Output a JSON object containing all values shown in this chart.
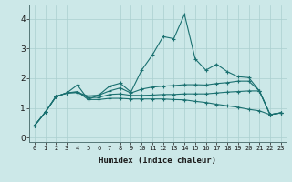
{
  "xlabel": "Humidex (Indice chaleur)",
  "ylabel": "",
  "xlim": [
    -0.5,
    23.5
  ],
  "ylim": [
    -0.15,
    4.45
  ],
  "xticks": [
    0,
    1,
    2,
    3,
    4,
    5,
    6,
    7,
    8,
    9,
    10,
    11,
    12,
    13,
    14,
    15,
    16,
    17,
    18,
    19,
    20,
    21,
    22,
    23
  ],
  "yticks": [
    0,
    1,
    2,
    3,
    4
  ],
  "background_color": "#cce8e8",
  "grid_color": "#aacfcf",
  "line_color": "#1a7070",
  "lines": [
    [
      0.4,
      0.85,
      1.38,
      1.5,
      1.77,
      1.28,
      1.43,
      1.73,
      1.83,
      1.53,
      2.27,
      2.78,
      3.4,
      3.33,
      4.15,
      2.65,
      2.27,
      2.47,
      2.22,
      2.05,
      2.02,
      1.57,
      0.77,
      0.83
    ],
    [
      0.4,
      0.85,
      1.38,
      1.5,
      1.52,
      1.4,
      1.43,
      1.57,
      1.67,
      1.5,
      1.63,
      1.7,
      1.73,
      1.75,
      1.78,
      1.78,
      1.77,
      1.82,
      1.85,
      1.9,
      1.9,
      1.57,
      0.77,
      0.83
    ],
    [
      0.4,
      0.85,
      1.38,
      1.5,
      1.52,
      1.35,
      1.35,
      1.45,
      1.47,
      1.42,
      1.42,
      1.43,
      1.45,
      1.45,
      1.47,
      1.47,
      1.47,
      1.5,
      1.53,
      1.55,
      1.57,
      1.57,
      0.77,
      0.83
    ],
    [
      0.4,
      0.85,
      1.38,
      1.5,
      1.55,
      1.28,
      1.28,
      1.32,
      1.32,
      1.3,
      1.3,
      1.3,
      1.3,
      1.28,
      1.27,
      1.22,
      1.18,
      1.12,
      1.07,
      1.02,
      0.95,
      0.9,
      0.77,
      0.83
    ]
  ],
  "xlabel_fontsize": 6.5,
  "xtick_fontsize": 5.0,
  "ytick_fontsize": 6.5
}
